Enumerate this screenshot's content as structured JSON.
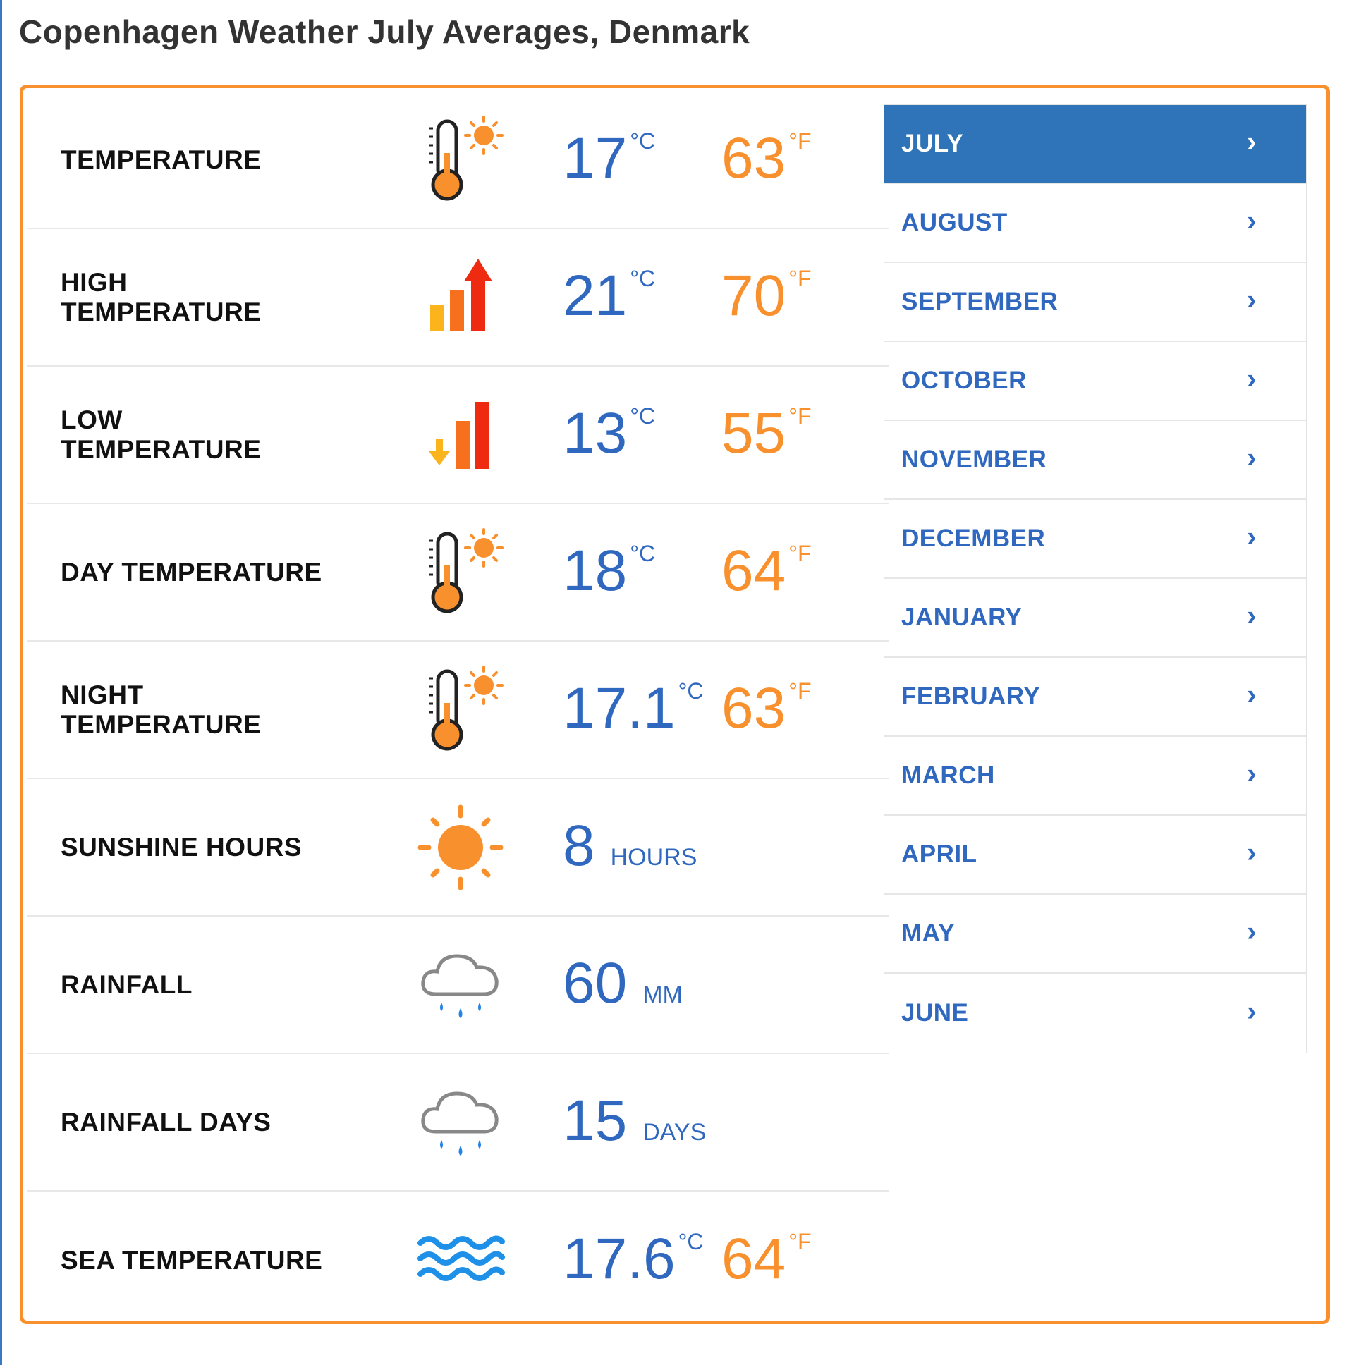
{
  "page": {
    "title": "Copenhagen Weather July Averages, Denmark"
  },
  "stats": {
    "temperature": {
      "label": "TEMPERATURE",
      "icon": "thermometer-sun-icon",
      "c": "17",
      "c_unit": "°C",
      "f": "63",
      "f_unit": "°F"
    },
    "high": {
      "label": "HIGH\nTEMPERATURE",
      "icon": "rising-bars-arrow-icon",
      "c": "21",
      "c_unit": "°C",
      "f": "70",
      "f_unit": "°F"
    },
    "low": {
      "label": "LOW\nTEMPERATURE",
      "icon": "falling-bars-arrow-icon",
      "c": "13",
      "c_unit": "°C",
      "f": "55",
      "f_unit": "°F"
    },
    "day": {
      "label": "DAY TEMPERATURE",
      "icon": "thermometer-sun-icon",
      "c": "18",
      "c_unit": "°C",
      "f": "64",
      "f_unit": "°F"
    },
    "night": {
      "label": "NIGHT\nTEMPERATURE",
      "icon": "thermometer-sun-icon",
      "c": "17.1",
      "c_unit": "°C",
      "f": "63",
      "f_unit": "°F"
    },
    "sunshine": {
      "label": "SUNSHINE HOURS",
      "icon": "sun-icon",
      "value": "8",
      "unit": "HOURS"
    },
    "rainfall": {
      "label": "RAINFALL",
      "icon": "rain-cloud-icon",
      "value": "60",
      "unit": "MM"
    },
    "rain_days": {
      "label": "RAINFALL DAYS",
      "icon": "rain-cloud-icon",
      "value": "15",
      "unit": "DAYS"
    },
    "sea": {
      "label": "SEA TEMPERATURE",
      "icon": "waves-icon",
      "c": "17.6",
      "c_unit": "°C",
      "f": "64",
      "f_unit": "°F"
    }
  },
  "months": {
    "active": "JULY",
    "chevron": "›",
    "items": [
      "JULY",
      "AUGUST",
      "SEPTEMBER",
      "OCTOBER",
      "NOVEMBER",
      "DECEMBER",
      "JANUARY",
      "FEBRUARY",
      "MARCH",
      "APRIL",
      "MAY",
      "JUNE"
    ]
  },
  "colors": {
    "accent_blue": "#2f68be",
    "accent_orange": "#f7902d",
    "active_tab": "#2f73b8"
  }
}
